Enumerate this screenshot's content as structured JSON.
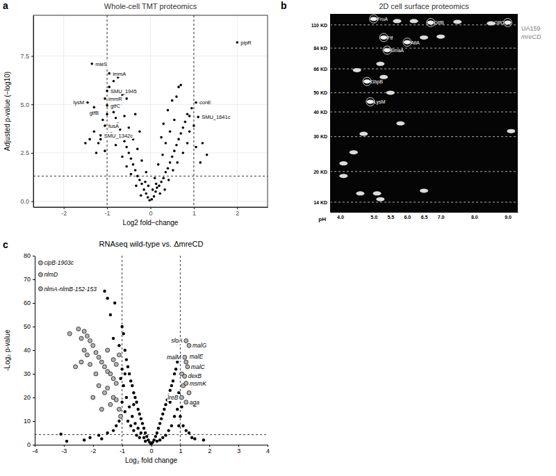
{
  "chart_data": [
    {
      "panel": "a",
      "type": "scatter",
      "title": "Whole-cell TMT proteomics",
      "x_label": "Log2 fold−change",
      "y_label": "Adjusted p-value (−log10)",
      "xlim": [
        -2.7,
        2.7
      ],
      "ylim": [
        -0.3,
        9.6
      ],
      "xticks": [
        -2,
        -1,
        0,
        1,
        2
      ],
      "yticks": [
        {
          "value": 0,
          "label": "0.0"
        },
        {
          "value": 2.5,
          "label": "2.5"
        },
        {
          "value": 5,
          "label": "5.0"
        },
        {
          "value": 7.5,
          "label": "7.5"
        }
      ],
      "grid": true,
      "threshold_lines": {
        "x": [
          -1,
          1
        ],
        "y": [
          1.3
        ]
      },
      "points": {
        "color": "#000000",
        "x": [
          -0.02,
          0.03,
          -0.06,
          0.08,
          -0.1,
          0.12,
          -0.15,
          0.15,
          -0.2,
          0.2,
          -0.25,
          0.25,
          -0.3,
          0.3,
          -0.35,
          0.35,
          -0.4,
          0.4,
          -0.45,
          0.45,
          -0.5,
          0.5,
          -0.55,
          0.55,
          -0.6,
          0.6,
          -0.65,
          0.65,
          -0.7,
          0.7,
          -0.75,
          0.75,
          -0.8,
          0.8,
          -0.85,
          0.85,
          -0.9,
          0.9,
          -0.1,
          0.1,
          -0.2,
          0.18,
          -0.3,
          0.28,
          -0.4,
          0.35,
          -0.5,
          0.45,
          -0.6,
          0.55,
          -0.7,
          0.6,
          -0.75,
          0.65,
          -0.8,
          0.7,
          -0.85,
          0.5,
          -0.95,
          0.95,
          -1.1,
          1.0,
          -1.2,
          1.15,
          -1.3,
          1.2,
          -1.4,
          -0.05,
          0.05,
          -0.12,
          0.13,
          -0.22,
          0.22,
          -0.33,
          0.33,
          -0.45,
          0.42,
          -0.55,
          0.52,
          -0.65,
          0.62,
          -0.8,
          0.75,
          -0.9,
          0.85,
          -1.0,
          0.9,
          -1.05,
          1.05,
          -1.15,
          0.3,
          -0.35,
          0.4,
          -0.55,
          -0.65,
          0.25,
          -0.25,
          -1.25,
          1.3,
          -1.5
        ],
        "y": [
          0.05,
          0.1,
          0.2,
          0.25,
          0.4,
          0.5,
          0.6,
          0.7,
          0.9,
          0.8,
          1.1,
          1.0,
          1.3,
          1.2,
          1.6,
          1.5,
          1.9,
          1.7,
          2.2,
          2.0,
          2.5,
          2.3,
          2.8,
          2.6,
          3.1,
          2.9,
          3.4,
          3.2,
          3.7,
          3.5,
          4.0,
          3.8,
          4.3,
          4.1,
          4.6,
          4.5,
          5.0,
          4.4,
          1.5,
          1.2,
          2.1,
          1.9,
          2.7,
          2.4,
          3.2,
          3.0,
          3.8,
          3.6,
          4.4,
          4.2,
          5.0,
          5.4,
          6.4,
          5.9,
          5.6,
          6.0,
          6.2,
          5.2,
          5.9,
          4.8,
          4.2,
          3.9,
          3.0,
          2.0,
          3.6,
          3.0,
          3.2,
          0.8,
          0.6,
          1.0,
          0.9,
          0.3,
          0.4,
          0.8,
          0.6,
          1.4,
          1.1,
          1.8,
          1.6,
          2.3,
          2.0,
          2.9,
          2.5,
          3.5,
          3.0,
          4.5,
          3.6,
          2.6,
          2.8,
          3.2,
          4.0,
          4.5,
          4.7,
          5.3,
          5.5,
          3.3,
          3.6,
          2.5,
          2.4,
          3.0
        ]
      },
      "labeled_points": {
        "color": "#000000",
        "x": [
          2.0,
          -1.35,
          -0.95,
          -1.0,
          -1.45,
          -1.05,
          -1.3,
          -1.0,
          1.05,
          1.1,
          -1.05,
          -1.15
        ],
        "y": [
          8.2,
          7.1,
          6.6,
          5.7,
          5.1,
          5.3,
          4.85,
          4.95,
          5.1,
          4.35,
          3.9,
          3.4
        ],
        "labels": [
          "pipR",
          "mleS",
          "immA",
          "SMU_1945",
          "lysM",
          "immR",
          "gtfB",
          "gtfC",
          "conE",
          "SMU_1641c",
          "fusA",
          "SMU_1342c"
        ]
      }
    },
    {
      "panel": "b",
      "type": "gel",
      "title": "2D cell surface proteomics",
      "x_label": "pH",
      "xlim": [
        3.7,
        9.3
      ],
      "ylim": [
        12.5,
        125
      ],
      "log": "y",
      "grid": true,
      "xticks": [
        {
          "value": 4,
          "label": "4.0"
        },
        {
          "value": 5,
          "label": "5.0"
        },
        {
          "value": 5.5,
          "label": "5.5"
        },
        {
          "value": 6,
          "label": "6.0"
        },
        {
          "value": 6.5,
          "label": "6.5"
        },
        {
          "value": 7,
          "label": "7.0"
        },
        {
          "value": 8,
          "label": "8.0"
        },
        {
          "value": 9,
          "label": "9.0"
        }
      ],
      "yticks": [
        {
          "value": 110,
          "label": "110 KD"
        },
        {
          "value": 84,
          "label": "84 KD"
        },
        {
          "value": 66,
          "label": "66 KD"
        },
        {
          "value": 50,
          "label": "50 KD"
        },
        {
          "value": 40,
          "label": "40 KD"
        },
        {
          "value": 30,
          "label": "30 KD"
        },
        {
          "value": 20,
          "label": "20 KD"
        },
        {
          "value": 14,
          "label": "14 KD"
        }
      ],
      "channels": [
        "UA159",
        "mreCD"
      ],
      "spots": {
        "color": "#dcdcdc",
        "x": [
          4.1,
          4.1,
          4.6,
          5.1,
          4.7,
          5.7,
          6.2,
          7.5,
          8.5,
          5.3,
          5.2,
          4.5,
          6.5,
          7.0,
          5.5,
          5.8,
          4.4,
          9.1,
          6.5,
          5.2
        ],
        "y": [
          22,
          19,
          15.5,
          15.5,
          31,
          115,
          115,
          114,
          112,
          60,
          70,
          65,
          95,
          96,
          50,
          35,
          25,
          32,
          16,
          14.5
        ]
      },
      "labeled_spots": {
        "color": "#f0f0f0",
        "x": [
          5.0,
          6.7,
          9.0,
          5.3,
          5.4,
          6.0,
          4.8,
          4.9
        ],
        "y": [
          118,
          113,
          113,
          95,
          82,
          90,
          57,
          45
        ],
        "labels": [
          "FruA",
          "GtfB",
          "GtfC",
          "Ftf",
          "SmaA",
          "AtlA",
          "GbpB",
          "LysM"
        ]
      }
    },
    {
      "panel": "c",
      "type": "scatter",
      "title": "RNAseq wild-type vs. ΔmreCD",
      "x_label": "Log₂ fold change",
      "y_label": "-Log₂ p-value",
      "xlim": [
        -4,
        4
      ],
      "ylim": [
        0,
        80
      ],
      "xticks": [
        -4,
        -3,
        -2,
        -1,
        0,
        1,
        2,
        3,
        4
      ],
      "yticks": [
        0,
        10,
        20,
        30,
        40,
        50,
        60,
        70,
        80
      ],
      "grid": false,
      "threshold_lines": {
        "x": [
          -1,
          1
        ],
        "y": [
          4.3
        ]
      },
      "points": {
        "color": "#000000",
        "x": [
          -1.6,
          -1.5,
          -1.25,
          -1.4,
          -1.0,
          -0.95,
          -1.3,
          -1.1,
          -0.9,
          -0.85,
          -0.8,
          -0.75,
          -0.7,
          -0.65,
          -0.6,
          -0.55,
          -0.5,
          -0.45,
          -0.4,
          -0.35,
          -0.3,
          -0.25,
          -0.2,
          -0.15,
          -0.1,
          -0.05,
          0,
          0.05,
          0.1,
          0.15,
          0.2,
          0.25,
          0.3,
          0.35,
          0.4,
          0.45,
          0.5,
          0.55,
          0.6,
          0.65,
          0.7,
          0.75,
          0.8,
          0.85,
          0.9,
          0.95,
          0.9,
          0.8,
          0.7,
          0.6,
          0.5,
          0.4,
          -0.4,
          -0.5,
          -0.6,
          -0.7,
          -0.8,
          -0.9,
          -1.0,
          -0.95,
          -0.9,
          -1.0,
          -0.85,
          -0.75,
          -0.65,
          -0.55,
          -0.45,
          -0.35,
          -0.25,
          0.3,
          0.2,
          -0.2,
          -1.1,
          -1.2,
          -1.3,
          -1.5,
          1.1,
          1.2,
          1.3,
          1.4,
          1.0,
          1.05,
          -3.1,
          1.8,
          -2.9,
          -2.3,
          -1.8,
          1.5,
          -2.1,
          -1.7,
          0.65,
          -0.6,
          -1.05,
          0.95
        ],
        "y": [
          65,
          62,
          60,
          55,
          50,
          47,
          45,
          42,
          40,
          36,
          33,
          30,
          27,
          25,
          22,
          20,
          18,
          15,
          13,
          11,
          9,
          7,
          5,
          3.5,
          2,
          1,
          0.2,
          1,
          2,
          3.5,
          5,
          7,
          9,
          11,
          13,
          15,
          17,
          19,
          21,
          23,
          25,
          27,
          30,
          32,
          35,
          22,
          15,
          12,
          8,
          6,
          4,
          3,
          3,
          4,
          6,
          8,
          10,
          14,
          18,
          25,
          30,
          32,
          20,
          16,
          12,
          9,
          7,
          5,
          3,
          2,
          1.5,
          1.5,
          10,
          8,
          6,
          5,
          8,
          6,
          5,
          3,
          12,
          16,
          4.5,
          2,
          1.5,
          2,
          4,
          2.5,
          3,
          2.5,
          18,
          17,
          28,
          8
        ]
      },
      "significant_points": {
        "color": "#b3b3b3",
        "x": [
          -2.5,
          -2.3,
          -2.2,
          -2.4,
          -2.1,
          -2.0,
          -2.3,
          -2.2,
          -1.9,
          -1.8,
          -2.6,
          -2.4,
          -2.1,
          -1.7,
          -1.6,
          -1.5,
          -1.4,
          -1.9,
          -1.3,
          -1.2,
          -1.8,
          -1.5,
          -1.6,
          -1.3,
          -1.2,
          -1.4,
          -1.1,
          -2.0,
          -1.7,
          -1.05,
          -1.2,
          -1.3,
          -1.1,
          -2.8,
          -1.5,
          1.5,
          1.1,
          1.05,
          1.3
        ],
        "y": [
          49,
          48,
          46,
          45,
          44,
          42,
          40,
          38,
          39,
          37,
          33,
          35,
          34,
          35,
          33,
          31,
          30,
          30,
          28,
          26,
          25,
          24,
          22,
          20,
          19,
          17,
          15,
          20,
          15,
          12,
          34,
          36,
          38,
          47,
          40,
          17,
          25,
          30,
          22
        ]
      },
      "labeled_points": {
        "color": "#b3b3b3",
        "x": [
          -3.8,
          -3.8,
          -3.8,
          1.2,
          1.3,
          1.15,
          1.2,
          1.25,
          1.15,
          1.2,
          1.05,
          1.2
        ],
        "y": [
          77,
          72,
          66,
          44,
          42,
          37,
          35,
          33,
          29,
          26,
          20,
          18
        ],
        "labels": [
          "cipB-1903c",
          "nlmD",
          "nlmA-nlmB-152-153",
          "sloA",
          "malG",
          "malM",
          "malE",
          "malC",
          "dexB",
          "msmK",
          "lreB",
          "aga"
        ]
      }
    }
  ]
}
